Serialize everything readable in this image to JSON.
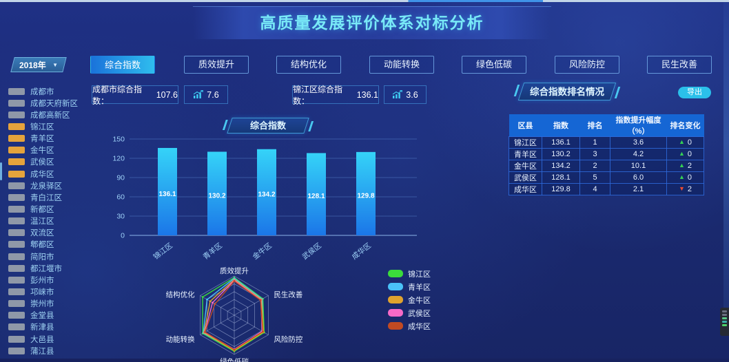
{
  "header": {
    "title": "高质量发展评价体系对标分析"
  },
  "sidebar": {
    "year_selector": {
      "value": "2018年",
      "caret": "▼"
    },
    "districts": [
      {
        "label": "成都市",
        "color": "#8f98a8"
      },
      {
        "label": "成都天府新区",
        "color": "#8f98a8"
      },
      {
        "label": "成都高新区",
        "color": "#8f98a8"
      },
      {
        "label": "锦江区",
        "color": "#e5a33c"
      },
      {
        "label": "青羊区",
        "color": "#e5a33c"
      },
      {
        "label": "金牛区",
        "color": "#e5a33c"
      },
      {
        "label": "武侯区",
        "color": "#e5a33c"
      },
      {
        "label": "成华区",
        "color": "#e5a33c"
      },
      {
        "label": "龙泉驿区",
        "color": "#8f98a8"
      },
      {
        "label": "青白江区",
        "color": "#8f98a8"
      },
      {
        "label": "新都区",
        "color": "#8f98a8"
      },
      {
        "label": "温江区",
        "color": "#8f98a8"
      },
      {
        "label": "双流区",
        "color": "#8f98a8"
      },
      {
        "label": "郫都区",
        "color": "#8f98a8"
      },
      {
        "label": "简阳市",
        "color": "#8f98a8"
      },
      {
        "label": "都江堰市",
        "color": "#8f98a8"
      },
      {
        "label": "彭州市",
        "color": "#8f98a8"
      },
      {
        "label": "邛崃市",
        "color": "#8f98a8"
      },
      {
        "label": "崇州市",
        "color": "#8f98a8"
      },
      {
        "label": "金堂县",
        "color": "#8f98a8"
      },
      {
        "label": "新津县",
        "color": "#8f98a8"
      },
      {
        "label": "大邑县",
        "color": "#8f98a8"
      },
      {
        "label": "蒲江县",
        "color": "#8f98a8"
      }
    ]
  },
  "tabs": [
    {
      "label": "综合指数",
      "active": true
    },
    {
      "label": "质效提升",
      "active": false
    },
    {
      "label": "结构优化",
      "active": false
    },
    {
      "label": "动能转换",
      "active": false
    },
    {
      "label": "绿色低碳",
      "active": false
    },
    {
      "label": "风险防控",
      "active": false
    },
    {
      "label": "民生改善",
      "active": false
    }
  ],
  "stats": {
    "city": {
      "label": "成都市综合指数：",
      "value": "107.6"
    },
    "city_delta": "7.6",
    "district": {
      "label": "锦江区综合指数：",
      "value": "136.1"
    },
    "district_delta": "3.6"
  },
  "bar_section": {
    "badge": "综合指数"
  },
  "rank_panel": {
    "badge": "综合指数排名情况",
    "export_label": "导出",
    "headers": [
      "区县",
      "指数",
      "排名",
      "指数提升幅度（%）",
      "排名变化"
    ],
    "rows": [
      {
        "district": "锦江区",
        "index": "136.1",
        "rank": "1",
        "improve": "3.6",
        "arrow": "▲",
        "arrow_color": "#35d154",
        "change": "0"
      },
      {
        "district": "青羊区",
        "index": "130.2",
        "rank": "3",
        "improve": "4.2",
        "arrow": "▲",
        "arrow_color": "#35d154",
        "change": "0"
      },
      {
        "district": "金牛区",
        "index": "134.2",
        "rank": "2",
        "improve": "10.1",
        "arrow": "▲",
        "arrow_color": "#35d154",
        "change": "2"
      },
      {
        "district": "武侯区",
        "index": "128.1",
        "rank": "5",
        "improve": "6.0",
        "arrow": "▲",
        "arrow_color": "#35d154",
        "change": "0"
      },
      {
        "district": "成华区",
        "index": "129.8",
        "rank": "4",
        "improve": "2.1",
        "arrow": "▼",
        "arrow_color": "#ef4b30",
        "change": "2"
      }
    ]
  },
  "chart_data": [
    {
      "type": "bar",
      "title": "综合指数",
      "categories": [
        "锦江区",
        "青羊区",
        "金牛区",
        "武侯区",
        "成华区"
      ],
      "values": [
        136.1,
        130.2,
        134.2,
        128.1,
        129.8
      ],
      "xlabel": "",
      "ylabel": "",
      "ylim": [
        0,
        150
      ],
      "yticks": [
        0,
        30,
        60,
        90,
        120,
        150
      ],
      "grid": true,
      "value_labels": true,
      "bar_color_top": "#35d3f8",
      "bar_color_bottom": "#1b76e8",
      "legend_position": "none"
    },
    {
      "type": "radar",
      "axes": [
        "质效提升",
        "民生改善",
        "风险防控",
        "绿色低碳",
        "动能转换",
        "结构优化"
      ],
      "max": 100,
      "levels": 5,
      "series": [
        {
          "name": "锦江区",
          "color": "#3bdc3b",
          "values": [
            96,
            84,
            88,
            92,
            93,
            93
          ]
        },
        {
          "name": "青羊区",
          "color": "#4ac2f8",
          "values": [
            94,
            82,
            85,
            89,
            91,
            80
          ]
        },
        {
          "name": "金牛区",
          "color": "#e0a32e",
          "values": [
            91,
            80,
            86,
            90,
            89,
            71
          ]
        },
        {
          "name": "武侯区",
          "color": "#f76ac8",
          "values": [
            89,
            78,
            82,
            87,
            87,
            64
          ]
        },
        {
          "name": "成华区",
          "color": "#c24a22",
          "values": [
            87,
            77,
            84,
            88,
            86,
            57
          ]
        }
      ],
      "legend_position": "right"
    }
  ]
}
